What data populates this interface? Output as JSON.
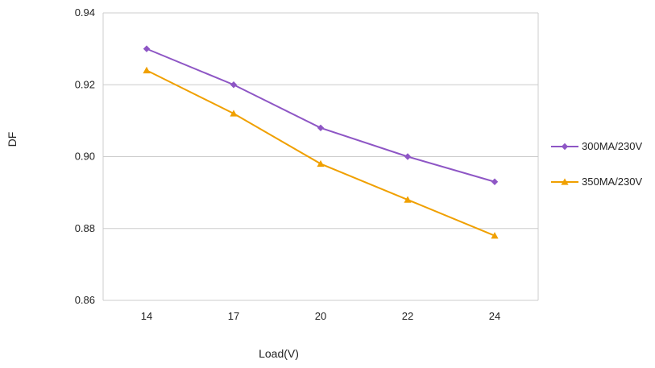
{
  "chart_data": {
    "type": "line",
    "title": "",
    "xlabel": "Load(V)",
    "ylabel": "DF",
    "categories": [
      "14",
      "17",
      "20",
      "22",
      "24"
    ],
    "ylim": [
      0.86,
      0.94
    ],
    "yticks": [
      "0.86",
      "0.88",
      "0.90",
      "0.92",
      "0.94"
    ],
    "grid": true,
    "legend_position": "right",
    "series": [
      {
        "name": "300MA/230V",
        "values": [
          0.93,
          0.92,
          0.908,
          0.9,
          0.893
        ],
        "color": "#8e56c5",
        "marker": "diamond"
      },
      {
        "name": "350MA/230V",
        "values": [
          0.924,
          0.912,
          0.898,
          0.888,
          0.878
        ],
        "color": "#f0a000",
        "marker": "triangle"
      }
    ]
  }
}
